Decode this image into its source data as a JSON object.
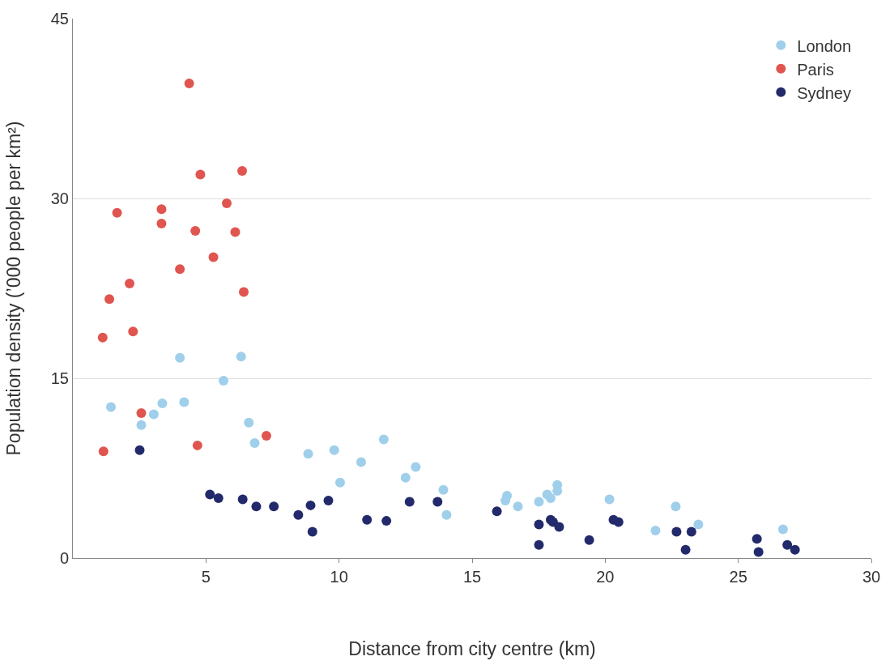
{
  "chart_data": {
    "type": "scatter",
    "xlabel": "Distance from city centre (km)",
    "ylabel": "Population density (’000 people per km²)",
    "xlim": [
      0,
      30
    ],
    "xticks": [
      5,
      10,
      15,
      20,
      25,
      30
    ],
    "ylim": [
      0,
      45
    ],
    "yticks": [
      0,
      15,
      30,
      45
    ],
    "grid": "y",
    "legend": "top right",
    "marker": "circle",
    "series": [
      {
        "name": "London",
        "color": "#9fcfea",
        "x": [
          1.43,
          2.57,
          3.04,
          3.36,
          4.02,
          4.18,
          5.66,
          6.32,
          6.61,
          6.83,
          8.84,
          9.82,
          10.04,
          10.83,
          11.68,
          12.5,
          12.88,
          13.92,
          14.04,
          16.25,
          16.31,
          16.72,
          17.51,
          17.82,
          17.95,
          18.2,
          18.2,
          20.16,
          21.89,
          22.65,
          23.5,
          26.68
        ],
        "values": [
          12.6,
          11.1,
          12.0,
          12.9,
          16.7,
          13.0,
          14.8,
          16.8,
          11.3,
          9.6,
          8.7,
          9.0,
          6.3,
          8.0,
          9.9,
          6.7,
          7.6,
          5.7,
          3.6,
          4.8,
          5.2,
          4.3,
          4.7,
          5.3,
          5.0,
          6.1,
          5.6,
          4.9,
          2.3,
          4.3,
          2.8,
          2.4
        ]
      },
      {
        "name": "Paris",
        "color": "#e0554f",
        "x": [
          1.12,
          1.37,
          1.66,
          2.13,
          2.26,
          1.15,
          2.57,
          3.33,
          3.33,
          4.02,
          4.37,
          4.6,
          4.79,
          4.68,
          5.28,
          5.78,
          6.1,
          6.36,
          6.42,
          7.27
        ],
        "values": [
          18.4,
          21.6,
          28.8,
          22.9,
          18.9,
          8.9,
          12.1,
          29.1,
          27.9,
          24.1,
          39.6,
          27.3,
          32.0,
          9.4,
          25.1,
          29.6,
          27.2,
          32.3,
          22.2,
          10.2
        ]
      },
      {
        "name": "Sydney",
        "color": "#232a6b",
        "x": [
          2.51,
          5.15,
          5.47,
          6.38,
          6.89,
          7.55,
          8.47,
          8.93,
          9.0,
          9.6,
          11.05,
          11.78,
          12.65,
          13.7,
          15.93,
          17.51,
          17.51,
          17.95,
          18.04,
          18.27,
          19.4,
          20.31,
          20.5,
          22.68,
          23.02,
          23.24,
          25.7,
          25.76,
          26.84,
          27.13
        ],
        "values": [
          9.0,
          5.3,
          5.0,
          4.9,
          4.3,
          4.3,
          3.6,
          4.4,
          2.2,
          4.8,
          3.2,
          3.1,
          4.7,
          4.7,
          3.9,
          2.8,
          1.1,
          3.2,
          3.0,
          2.6,
          1.5,
          3.2,
          3.0,
          2.2,
          0.7,
          2.2,
          1.6,
          0.5,
          1.1,
          0.7
        ]
      }
    ]
  }
}
